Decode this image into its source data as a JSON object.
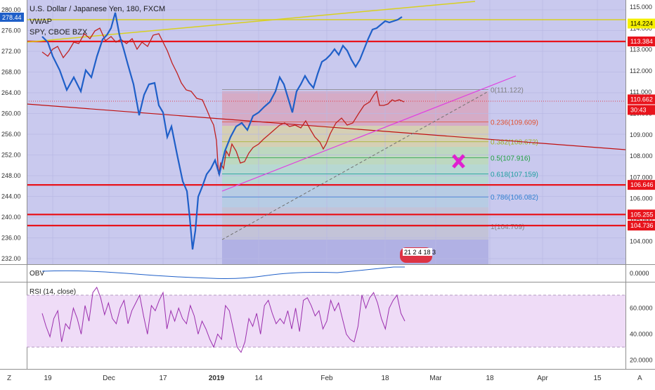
{
  "header": {
    "symbol_line": "U.S. Dollar / Japanese Yen, 180, FXCM",
    "indicator_1": "VWAP",
    "indicator_2": "SPY, CBOE BZX"
  },
  "colors": {
    "main_bg": "#c9c9ee",
    "candles": "#c02020",
    "spy_line": "#1f5fc8",
    "trend_yellow": "#d8d020",
    "horizontal_red": "#e8141c",
    "trend_magenta": "#e040e0",
    "rsi_line": "#9b2fae",
    "rsi_band": "#efdcf7"
  },
  "chart_data": [
    {
      "type": "line",
      "name": "price-pane",
      "left_axis": {
        "label_badge": "278.44",
        "ticks": [
          "280.00",
          "276.00",
          "272.00",
          "268.00",
          "264.00",
          "260.00",
          "256.00",
          "252.00",
          "248.00",
          "244.00",
          "240.00",
          "236.00",
          "232.00"
        ]
      },
      "right_axis": {
        "ticks": [
          "115.000",
          "114.000",
          "113.000",
          "112.000",
          "111.000",
          "110.000",
          "109.000",
          "108.000",
          "107.000",
          "106.000",
          "105.000",
          "104.000"
        ],
        "badges": [
          {
            "value": "114.224",
            "color": "#f5f000",
            "text_color": "#000000"
          },
          {
            "value": "113.384",
            "color": "#e8141c",
            "text_color": "#ffffff"
          },
          {
            "value": "110.662",
            "color": "#e8141c",
            "text_color": "#ffffff"
          },
          {
            "value": "30:43",
            "color": "#e8141c",
            "text_color": "#ffffff"
          },
          {
            "value": "106.646",
            "color": "#e8141c",
            "text_color": "#ffffff"
          },
          {
            "value": "105.255",
            "color": "#e8141c",
            "text_color": "#ffffff"
          },
          {
            "value": "104.736",
            "color": "#e8141c",
            "text_color": "#ffffff"
          }
        ]
      },
      "horizontal_levels": [
        113.384,
        106.646,
        105.255,
        104.736
      ],
      "fib_levels": [
        {
          "label": "0(111.122)",
          "value": 111.122,
          "color": "#808080"
        },
        {
          "label": "0.236(109.609)",
          "value": 109.609,
          "color": "#e05030"
        },
        {
          "label": "0.382(108.672)",
          "value": 108.672,
          "color": "#a0b020"
        },
        {
          "label": "0.5(107.916)",
          "value": 107.916,
          "color": "#20a040"
        },
        {
          "label": "0.618(107.159)",
          "value": 107.159,
          "color": "#20a0a0"
        },
        {
          "label": "0.786(106.082)",
          "value": 106.082,
          "color": "#3080d0"
        },
        {
          "label": "1(104.709)",
          "value": 104.709,
          "color": "#808080"
        }
      ],
      "usdjpy_path": [
        [
          60,
          74
        ],
        [
          68,
          80
        ],
        [
          75,
          70
        ],
        [
          82,
          66
        ],
        [
          90,
          82
        ],
        [
          98,
          72
        ],
        [
          105,
          60
        ],
        [
          112,
          62
        ],
        [
          120,
          48
        ],
        [
          128,
          55
        ],
        [
          135,
          44
        ],
        [
          142,
          40
        ],
        [
          150,
          58
        ],
        [
          158,
          52
        ],
        [
          165,
          60
        ],
        [
          172,
          56
        ],
        [
          180,
          62
        ],
        [
          188,
          55
        ],
        [
          195,
          70
        ],
        [
          202,
          60
        ],
        [
          210,
          66
        ],
        [
          218,
          50
        ],
        [
          226,
          48
        ],
        [
          232,
          60
        ],
        [
          238,
          72
        ],
        [
          245,
          90
        ],
        [
          252,
          104
        ],
        [
          258,
          118
        ],
        [
          265,
          128
        ],
        [
          272,
          130
        ],
        [
          280,
          140
        ],
        [
          288,
          142
        ],
        [
          295,
          158
        ],
        [
          300,
          170
        ],
        [
          304,
          178
        ],
        [
          308,
          200
        ],
        [
          311,
          248
        ],
        [
          314,
          232
        ],
        [
          318,
          240
        ],
        [
          322,
          215
        ],
        [
          326,
          222
        ],
        [
          330,
          205
        ],
        [
          336,
          215
        ],
        [
          342,
          232
        ],
        [
          348,
          230
        ],
        [
          354,
          218
        ],
        [
          360,
          210
        ],
        [
          368,
          205
        ],
        [
          375,
          198
        ],
        [
          382,
          192
        ],
        [
          390,
          185
        ],
        [
          398,
          178
        ],
        [
          405,
          175
        ],
        [
          412,
          180
        ],
        [
          420,
          178
        ],
        [
          428,
          182
        ],
        [
          435,
          172
        ],
        [
          442,
          185
        ],
        [
          448,
          195
        ],
        [
          455,
          202
        ],
        [
          460,
          212
        ],
        [
          464,
          205
        ],
        [
          470,
          190
        ],
        [
          478,
          175
        ],
        [
          486,
          168
        ],
        [
          494,
          178
        ],
        [
          502,
          175
        ],
        [
          510,
          162
        ],
        [
          518,
          150
        ],
        [
          526,
          145
        ],
        [
          532,
          135
        ],
        [
          536,
          130
        ],
        [
          540,
          150
        ],
        [
          546,
          150
        ],
        [
          552,
          148
        ],
        [
          558,
          142
        ],
        [
          562,
          144
        ],
        [
          568,
          142
        ],
        [
          575,
          145
        ]
      ],
      "spy_path": [
        [
          60,
          52
        ],
        [
          68,
          60
        ],
        [
          75,
          80
        ],
        [
          85,
          100
        ],
        [
          95,
          128
        ],
        [
          105,
          110
        ],
        [
          115,
          130
        ],
        [
          122,
          100
        ],
        [
          130,
          110
        ],
        [
          138,
          80
        ],
        [
          146,
          56
        ],
        [
          152,
          50
        ],
        [
          158,
          40
        ],
        [
          164,
          18
        ],
        [
          170,
          50
        ],
        [
          176,
          70
        ],
        [
          182,
          92
        ],
        [
          190,
          120
        ],
        [
          198,
          164
        ],
        [
          205,
          135
        ],
        [
          212,
          120
        ],
        [
          220,
          118
        ],
        [
          226,
          150
        ],
        [
          232,
          160
        ],
        [
          238,
          195
        ],
        [
          244,
          180
        ],
        [
          252,
          220
        ],
        [
          260,
          258
        ],
        [
          266,
          272
        ],
        [
          270,
          310
        ],
        [
          274,
          355
        ],
        [
          278,
          328
        ],
        [
          282,
          280
        ],
        [
          288,
          265
        ],
        [
          294,
          248
        ],
        [
          300,
          240
        ],
        [
          306,
          228
        ],
        [
          312,
          248
        ],
        [
          320,
          215
        ],
        [
          328,
          195
        ],
        [
          336,
          180
        ],
        [
          344,
          175
        ],
        [
          352,
          185
        ],
        [
          360,
          165
        ],
        [
          368,
          160
        ],
        [
          376,
          152
        ],
        [
          384,
          145
        ],
        [
          392,
          130
        ],
        [
          398,
          110
        ],
        [
          404,
          120
        ],
        [
          410,
          140
        ],
        [
          416,
          160
        ],
        [
          422,
          130
        ],
        [
          428,
          120
        ],
        [
          434,
          108
        ],
        [
          440,
          118
        ],
        [
          446,
          125
        ],
        [
          452,
          105
        ],
        [
          458,
          88
        ],
        [
          464,
          84
        ],
        [
          470,
          78
        ],
        [
          476,
          70
        ],
        [
          482,
          78
        ],
        [
          488,
          65
        ],
        [
          494,
          72
        ],
        [
          500,
          85
        ],
        [
          506,
          95
        ],
        [
          512,
          85
        ],
        [
          518,
          70
        ],
        [
          524,
          55
        ],
        [
          530,
          42
        ],
        [
          536,
          40
        ],
        [
          542,
          35
        ],
        [
          548,
          30
        ],
        [
          554,
          32
        ],
        [
          560,
          30
        ],
        [
          566,
          28
        ],
        [
          572,
          24
        ]
      ]
    },
    {
      "type": "area",
      "name": "OBV",
      "label": "OBV",
      "right_axis": {
        "ticks": [
          "0.0000"
        ]
      }
    },
    {
      "type": "line",
      "name": "RSI (14, close)",
      "label": "RSI (14, close)",
      "ylim": [
        20,
        80
      ],
      "bands": [
        70,
        30
      ],
      "right_axis": {
        "ticks": [
          "60.0000",
          "40.0000",
          "20.0000"
        ]
      },
      "values": [
        56,
        46,
        38,
        52,
        58,
        34,
        48,
        44,
        60,
        52,
        40,
        62,
        50,
        72,
        76,
        68,
        55,
        64,
        52,
        48,
        60,
        66,
        48,
        58,
        64,
        70,
        54,
        40,
        62,
        58,
        66,
        72,
        44,
        58,
        50,
        60,
        52,
        48,
        62,
        54,
        40,
        50,
        44,
        36,
        30,
        40,
        36,
        62,
        58,
        44,
        30,
        26,
        34,
        52,
        46,
        56,
        40,
        62,
        66,
        56,
        48,
        52,
        48,
        58,
        44,
        60,
        42,
        66,
        68,
        62,
        54,
        58,
        44,
        50,
        66,
        58,
        64,
        52,
        40,
        36,
        34,
        46,
        70,
        60,
        68,
        72,
        64,
        52,
        44,
        60,
        66,
        70,
        56,
        50
      ]
    }
  ],
  "x_axis": {
    "labels": [
      "19",
      "Dec",
      "17",
      "2019",
      "14",
      "Feb",
      "18",
      "Mar",
      "18",
      "Apr",
      "15"
    ],
    "bold_index": 3
  },
  "bottom_bar": {
    "left_glyph": "Z",
    "right_glyph": "A"
  },
  "timestamp_box": "21 2 4 18 3"
}
